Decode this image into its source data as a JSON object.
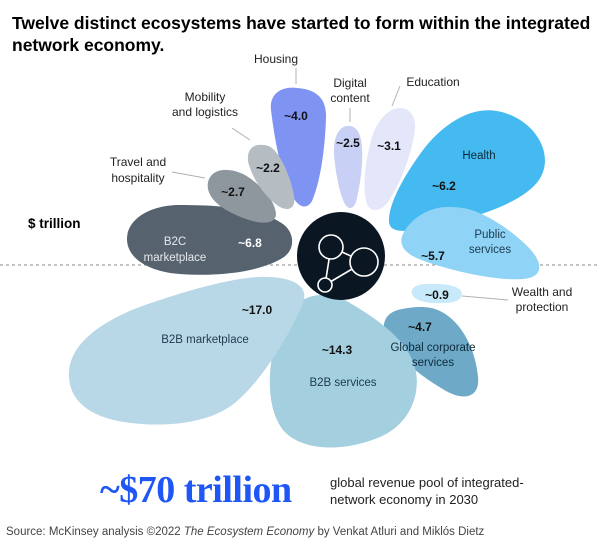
{
  "title": {
    "line1": "Twelve distinct ecosystems have started to form within the integrated",
    "line2": "network economy."
  },
  "unit_label": "$ trillion",
  "ecosystems": [
    {
      "label_lines": [
        "Housing"
      ],
      "value": "~4.0"
    },
    {
      "label_lines": [
        "Digital",
        "content"
      ],
      "value": "~2.5"
    },
    {
      "label_lines": [
        "Education"
      ],
      "value": "~3.1"
    },
    {
      "label_lines": [
        "Health"
      ],
      "value": "~6.2"
    },
    {
      "label_lines": [
        "Public",
        "services"
      ],
      "value": "~5.7"
    },
    {
      "label_lines": [
        "Wealth and",
        "protection"
      ],
      "value": "~0.9"
    },
    {
      "label_lines": [
        "Global corporate",
        "services"
      ],
      "value": "~4.7"
    },
    {
      "label_lines": [
        "B2B services"
      ],
      "value": "~14.3"
    },
    {
      "label_lines": [
        "B2B marketplace"
      ],
      "value": "~17.0"
    },
    {
      "label_lines": [
        "B2C",
        "marketplace"
      ],
      "value": "~6.8"
    },
    {
      "label_lines": [
        "Travel and",
        "hospitality"
      ],
      "value": "~2.7"
    },
    {
      "label_lines": [
        "Mobility",
        "and logistics"
      ],
      "value": "~2.2"
    }
  ],
  "colors": {
    "Housing": "#7f93f3",
    "Digital content": "#c8d0f6",
    "Education": "#e3e7f9",
    "Health": "#45baf0",
    "Public services": "#8fd3f7",
    "Wealth and protection": "#c8e9fa",
    "Global corporate services": "#6eaac8",
    "B2B services": "#a3cfdf",
    "B2B marketplace": "#b9d8e7",
    "B2C marketplace": "#56636f",
    "Travel and hospitality": "#8f979e",
    "Mobility and logistics": "#b5bcc2",
    "center": "#0b1623",
    "total_accent": "#1f57f5"
  },
  "center_icon": "network-nodes-icon",
  "total": {
    "value": "~$70 trillion",
    "description_line1": "global revenue pool of integrated-",
    "description_line2": "network economy in 2030"
  },
  "source": {
    "prefix": "Source: McKinsey analysis  ©2022 ",
    "book": "The Ecosystem Economy",
    "suffix": " by Venkat Atluri and Miklós Dietz"
  }
}
